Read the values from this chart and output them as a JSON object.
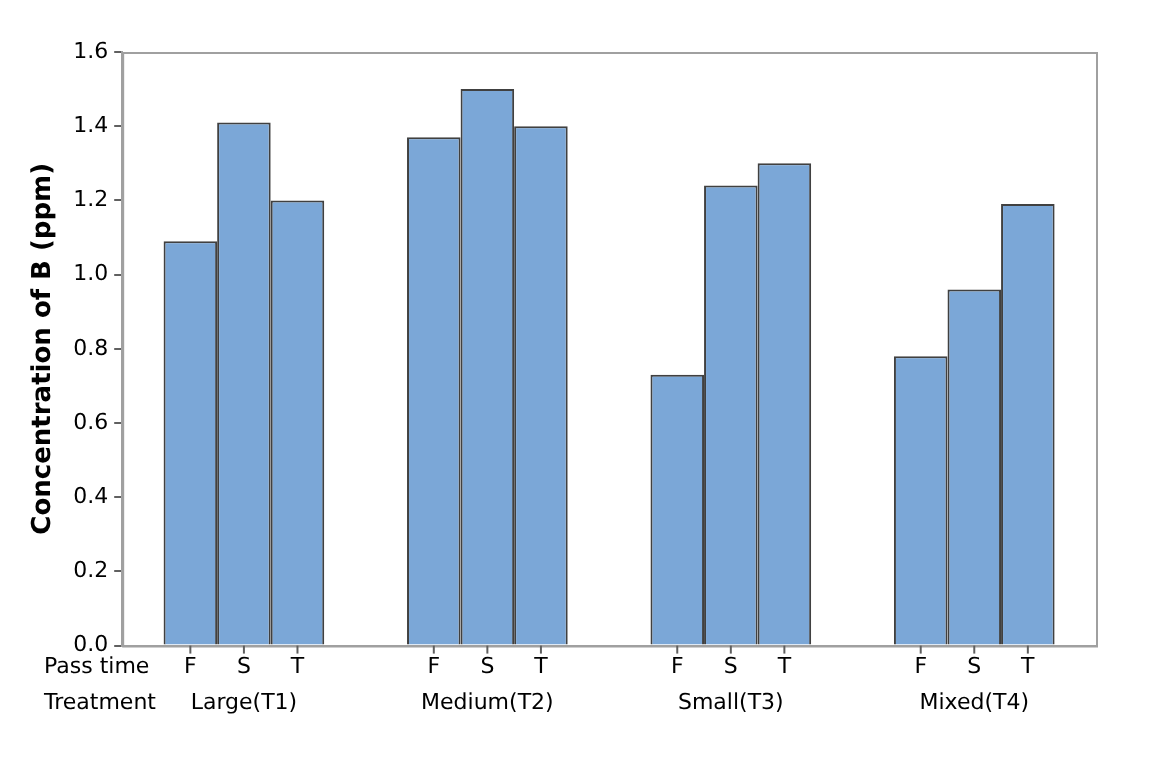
{
  "chart_data": {
    "type": "bar",
    "ylabel": "Concentration of B (ppm)",
    "xlabel": "Treatment",
    "annotations": [
      "Pass time"
    ],
    "categories": [
      "Large(T1)",
      "Medium(T2)",
      "Small(T3)",
      "Mixed(T4)"
    ],
    "series": [
      {
        "name": "F",
        "color": "#7ba7d7",
        "values": [
          1.09,
          1.37,
          0.73,
          0.78
        ]
      },
      {
        "name": "S",
        "color": "#7ba7d7",
        "values": [
          1.41,
          1.5,
          1.24,
          0.96
        ]
      },
      {
        "name": "T",
        "color": "#7ba7d7",
        "values": [
          1.2,
          1.4,
          1.3,
          1.19
        ]
      }
    ],
    "ylim": [
      0,
      1.6
    ],
    "yticks": [
      {
        "value": 0,
        "label": "0.0"
      },
      0.2,
      0.4,
      0.6,
      0.8,
      {
        "value": 1,
        "label": "1.0"
      },
      1.2,
      1.4,
      1.6
    ],
    "grid": false,
    "legend": false
  }
}
